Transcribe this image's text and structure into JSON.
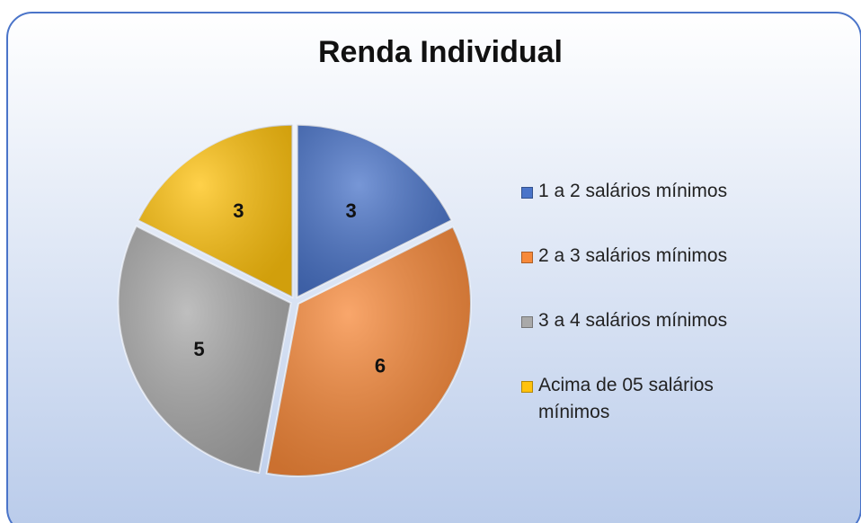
{
  "chart_data": {
    "type": "pie",
    "title": "Renda Individual",
    "categories": [
      "1 a 2 salários mínimos",
      "2 a 3 salários mínimos",
      "3 a 4 salários mínimos",
      "Acima de 05 salários mínimos"
    ],
    "values": [
      3,
      6,
      5,
      3
    ],
    "colors": [
      "#4a74c9",
      "#f7893a",
      "#a9a9a9",
      "#ffc20e"
    ],
    "legend": "right"
  }
}
